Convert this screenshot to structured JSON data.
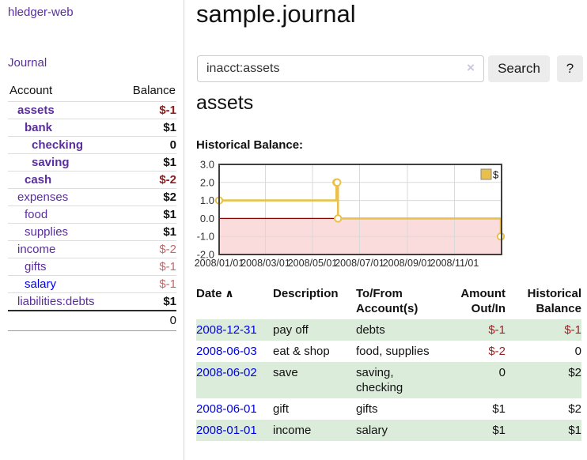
{
  "app": {
    "brand": "hledger-web",
    "nav_journal": "Journal"
  },
  "sidebar": {
    "header": {
      "account": "Account",
      "balance": "Balance"
    },
    "accounts": [
      {
        "name": "assets",
        "indent": 1,
        "current": true,
        "balance": "$-1",
        "neg": "strong"
      },
      {
        "name": "bank",
        "indent": 2,
        "current": true,
        "balance": "$1",
        "neg": null
      },
      {
        "name": "checking",
        "indent": 3,
        "current": true,
        "balance": "0",
        "neg": null
      },
      {
        "name": "saving",
        "indent": 3,
        "current": true,
        "balance": "$1",
        "neg": null
      },
      {
        "name": "cash",
        "indent": 2,
        "current": true,
        "balance": "$-2",
        "neg": "strong"
      },
      {
        "name": "expenses",
        "indent": 1,
        "current": false,
        "balance": "$2",
        "neg": null
      },
      {
        "name": "food",
        "indent": 2,
        "current": false,
        "balance": "$1",
        "neg": null
      },
      {
        "name": "supplies",
        "indent": 2,
        "current": false,
        "balance": "$1",
        "neg": null
      },
      {
        "name": "income",
        "indent": 1,
        "current": false,
        "balance": "$-2",
        "neg": "light"
      },
      {
        "name": "gifts",
        "indent": 2,
        "current": false,
        "balance": "$-1",
        "neg": "light"
      },
      {
        "name": "salary",
        "indent": 2,
        "current": false,
        "balance": "$-1",
        "neg": "light",
        "unvisited": true
      },
      {
        "name": "liabilities:debts",
        "indent": 1,
        "current": false,
        "balance": "$1",
        "neg": null
      }
    ],
    "total": "0"
  },
  "header": {
    "title": "sample.journal"
  },
  "search": {
    "value": "inacct:assets",
    "clear_icon": "×",
    "button_label": "Search",
    "help_label": "?"
  },
  "account_page": {
    "title": "assets",
    "chart_label": "Historical Balance:"
  },
  "chart_data": {
    "type": "line",
    "step": true,
    "title": "Historical Balance:",
    "legend": [
      {
        "label": "$",
        "color": "#e9c04b"
      }
    ],
    "x_min": "2008-01-01",
    "x_max": "2009-01-01",
    "ylim": [
      -2,
      3
    ],
    "y_ticks": [
      {
        "label": "3.0",
        "value": 3
      },
      {
        "label": "2.0",
        "value": 2
      },
      {
        "label": "1.0",
        "value": 1
      },
      {
        "label": "0.0",
        "value": 0
      },
      {
        "label": "-1.0",
        "value": -1
      },
      {
        "label": "-2.0",
        "value": -2
      }
    ],
    "x_ticks": [
      {
        "label": "2008/01/01",
        "date": "2008-01-01"
      },
      {
        "label": "2008/03/01",
        "date": "2008-03-01"
      },
      {
        "label": "2008/05/01",
        "date": "2008-05-01"
      },
      {
        "label": "2008/07/01",
        "date": "2008-07-01"
      },
      {
        "label": "2008/09/01",
        "date": "2008-09-01"
      },
      {
        "label": "2008/11/01",
        "date": "2008-11-01"
      }
    ],
    "points": [
      {
        "date": "2008-01-01",
        "value": 1
      },
      {
        "date": "2008-06-01",
        "value": 2
      },
      {
        "date": "2008-06-02",
        "value": 2
      },
      {
        "date": "2008-06-03",
        "value": 0
      },
      {
        "date": "2008-12-31",
        "value": -1
      }
    ],
    "grid": true,
    "line_color": "#e9c04b",
    "zero_line_color": "#8b0000",
    "negative_region_color": "#fbdcdc",
    "grid_color": "#d9d9d9",
    "frame_color": "#3f3f3f"
  },
  "register": {
    "sort_asc_icon": "∧",
    "columns": [
      {
        "line1": "Date",
        "line2": "",
        "align": "left",
        "sorted": true
      },
      {
        "line1": "Description",
        "line2": "",
        "align": "left"
      },
      {
        "line1": "To/From",
        "line2": "Account(s)",
        "align": "left"
      },
      {
        "line1": "Amount",
        "line2": "Out/In",
        "align": "right"
      },
      {
        "line1": "Historical",
        "line2": "Balance",
        "align": "right"
      }
    ],
    "rows": [
      {
        "date": "2008-12-31",
        "description": "pay off",
        "accounts": "debts",
        "amount": "$-1",
        "balance": "$-1"
      },
      {
        "date": "2008-06-03",
        "description": "eat & shop",
        "accounts": "food, supplies",
        "amount": "$-2",
        "balance": "0"
      },
      {
        "date": "2008-06-02",
        "description": "save",
        "accounts": "saving, checking",
        "amount": "0",
        "balance": "$2"
      },
      {
        "date": "2008-06-01",
        "description": "gift",
        "accounts": "gifts",
        "amount": "$1",
        "balance": "$2"
      },
      {
        "date": "2008-01-01",
        "description": "income",
        "accounts": "salary",
        "amount": "$1",
        "balance": "$1"
      }
    ]
  }
}
